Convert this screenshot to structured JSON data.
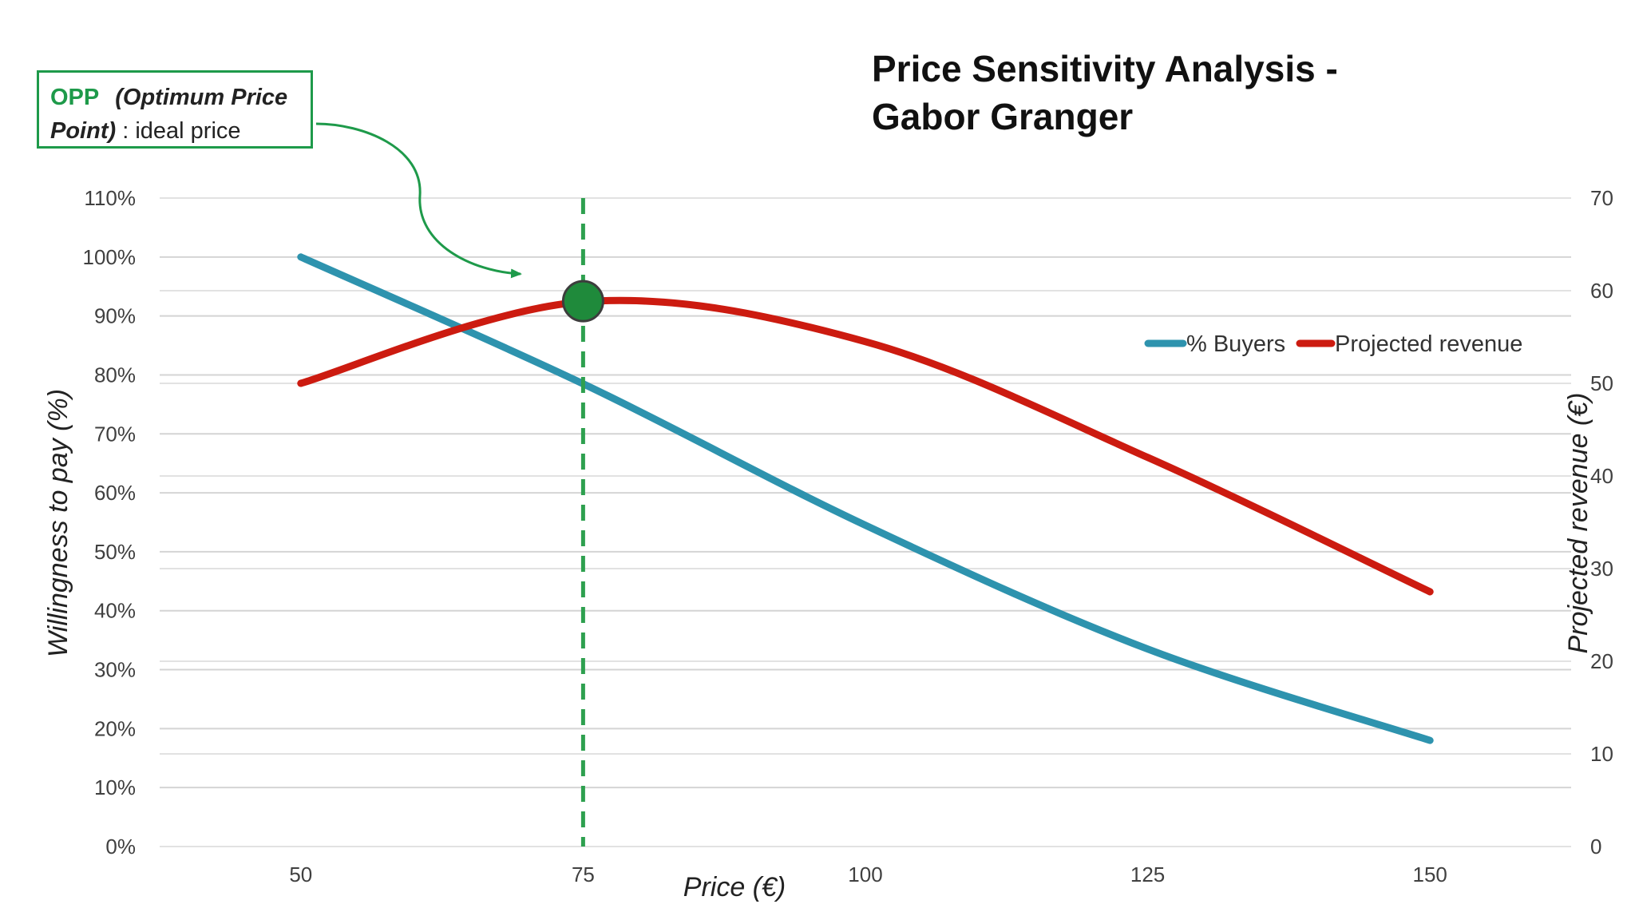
{
  "chart_data": {
    "type": "line",
    "title": [
      "Price Sensitivity Analysis -",
      "Gabor Granger"
    ],
    "xlabel": "Price (€)",
    "ylabel_left": "Willingness to pay (%)",
    "ylabel_right": "Projected revenue (€)",
    "x_ticks": [
      50,
      75,
      100,
      125,
      150
    ],
    "x_range": [
      37.5,
      162.5
    ],
    "y_left_ticks": [
      "0%",
      "10%",
      "20%",
      "30%",
      "40%",
      "50%",
      "60%",
      "70%",
      "80%",
      "90%",
      "100%",
      "110%"
    ],
    "y_left_range": [
      0,
      110
    ],
    "y_right_ticks": [
      "0",
      "10",
      "20",
      "30",
      "40",
      "50",
      "60",
      "70"
    ],
    "y_right_range": [
      0,
      70
    ],
    "grid": true,
    "legend_position": "right",
    "series": [
      {
        "name": "% Buyers",
        "axis": "left",
        "color": "#2E93AE",
        "x": [
          50,
          75,
          100,
          125,
          150
        ],
        "values": [
          100,
          78.5,
          54.5,
          33.5,
          18
        ]
      },
      {
        "name": "Projected revenue",
        "axis": "right",
        "color": "#CC1B10",
        "x": [
          50,
          75,
          100,
          125,
          150
        ],
        "values": [
          50,
          58.8,
          54.5,
          42,
          27.5
        ]
      }
    ],
    "optimum_price_line": {
      "x": 75,
      "color": "#2EA04F"
    },
    "optimum_point": {
      "x": 75,
      "y_left": 92.5,
      "color": "#1F8A3B"
    }
  },
  "annotation": {
    "abbrev": "OPP",
    "full_name": "(Optimum Price Point)",
    "description": " : ideal price",
    "color": "#1E9A4A"
  }
}
